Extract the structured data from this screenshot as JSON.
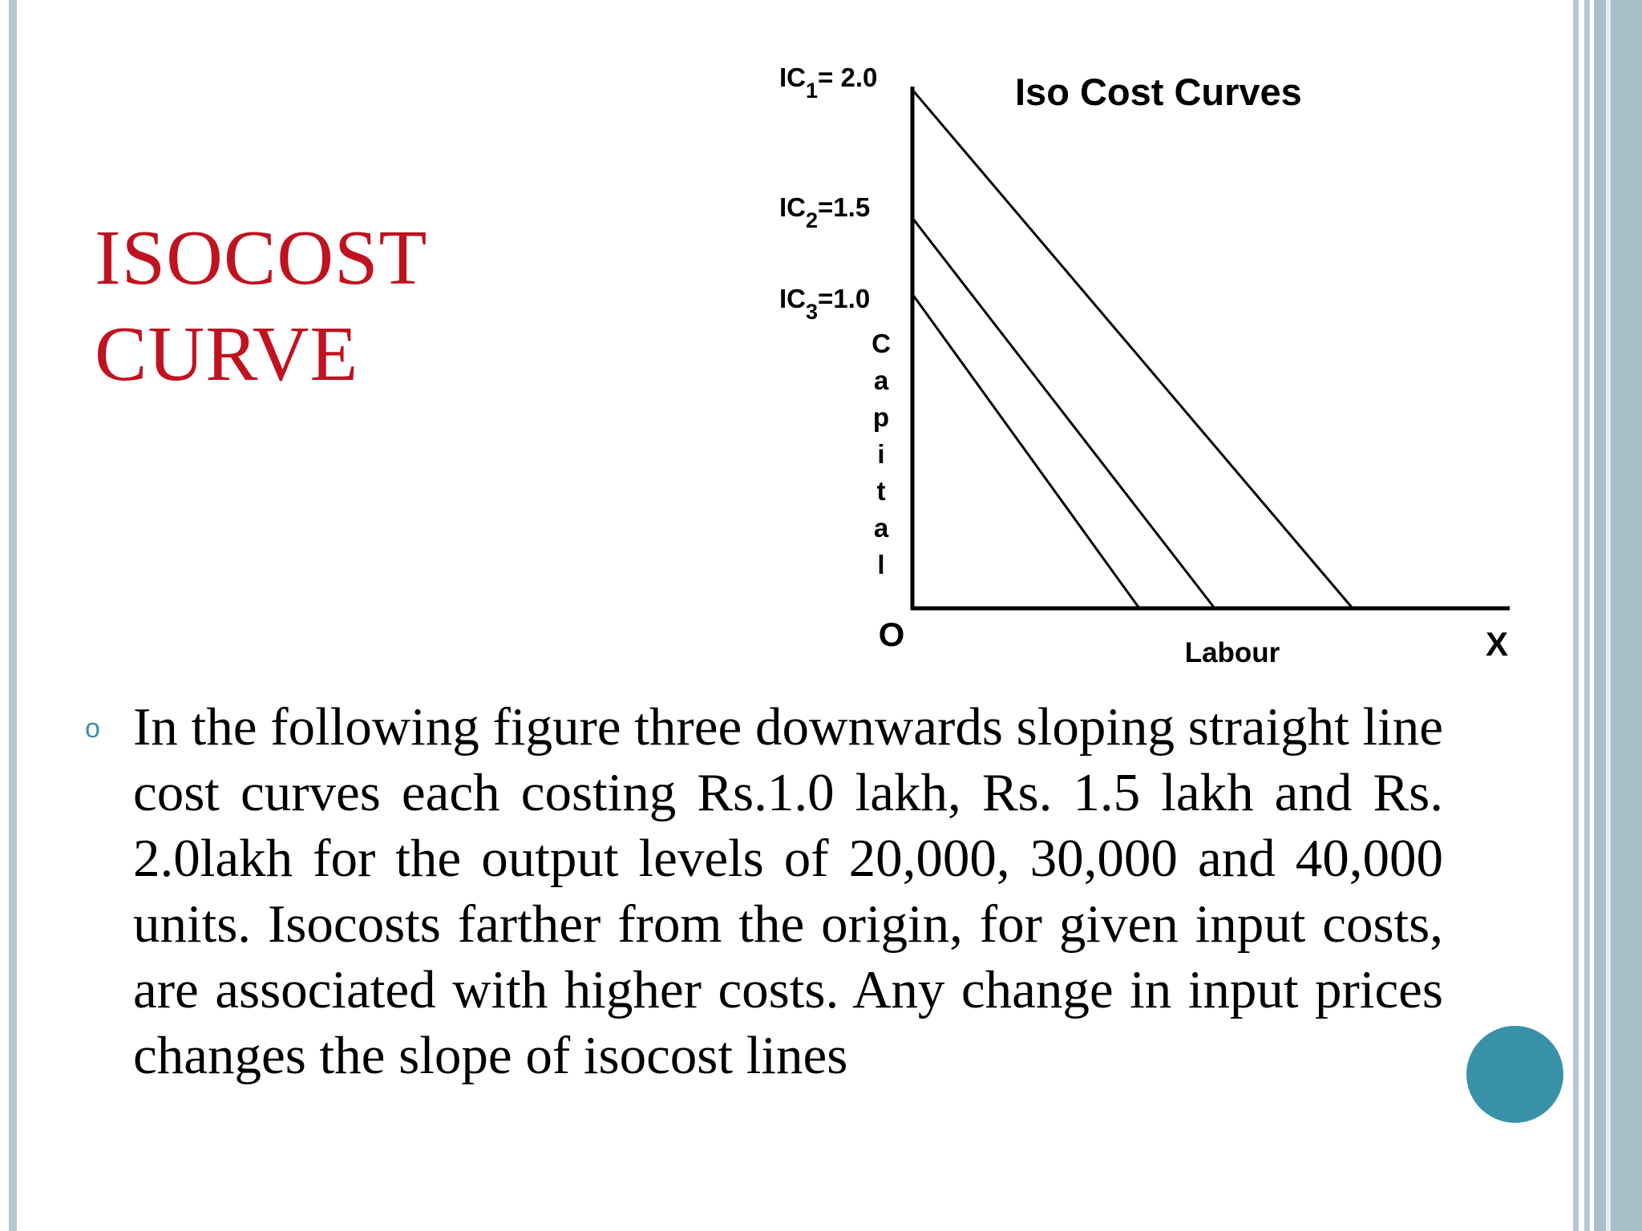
{
  "slide": {
    "title_line1": "ISOCOST",
    "title_line2": "CURVE",
    "bullet_symbol": "o",
    "body": "In the following figure three downwards sloping straight line cost curves each costing Rs.1.0 lakh, Rs. 1.5 lakh and Rs. 2.0lakh for the output levels of 20,000, 30,000 and 40,000 units. Isocosts farther from the origin, for given input costs, are associated with higher costs. Any change in input prices changes the slope of isocost lines"
  },
  "diagram": {
    "title": "Iso Cost Curves",
    "y_axis_label": "Capital",
    "x_axis_label": "Labour",
    "origin_label": "O",
    "x_end_label": "X",
    "curves": [
      {
        "base": "IC",
        "sub": "1",
        "value": "= 2.0",
        "cost": 2.0
      },
      {
        "base": "IC",
        "sub": "2",
        "value": "=1.5",
        "cost": 1.5
      },
      {
        "base": "IC",
        "sub": "3",
        "value": "=1.0",
        "cost": 1.0
      }
    ]
  },
  "colors": {
    "title": "#c0121f",
    "accent": "#3891a7",
    "frame": "#b6c8d1"
  }
}
